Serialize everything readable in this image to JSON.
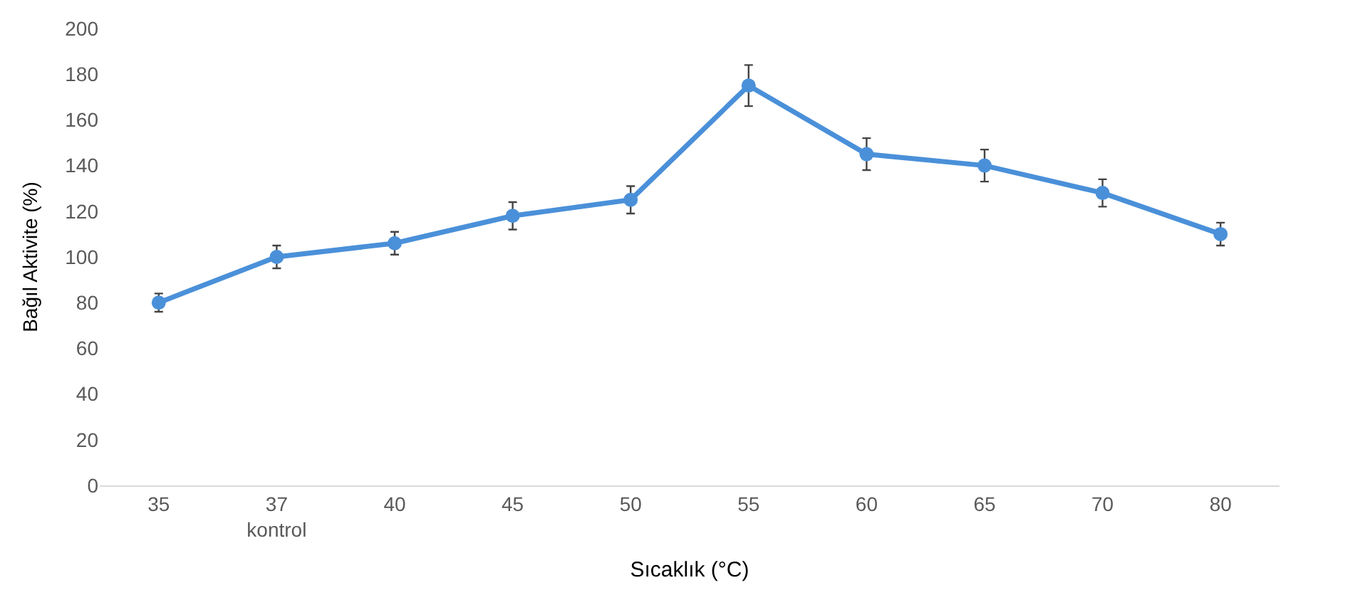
{
  "chart_data": {
    "type": "line",
    "xlabel": "Sıcaklık (°C)",
    "ylabel": "Bağıl Aktivite (%)",
    "categories": [
      "35",
      "37\nkontrol",
      "40",
      "45",
      "50",
      "55",
      "60",
      "65",
      "70",
      "80"
    ],
    "series": [
      {
        "color": "#4a90d9",
        "values": [
          80,
          100,
          106,
          118,
          125,
          175,
          145,
          140,
          128,
          110
        ],
        "errors": [
          4,
          5,
          5,
          6,
          6,
          9,
          7,
          7,
          6,
          5
        ]
      }
    ],
    "ylim": [
      0,
      200
    ],
    "yticks": [
      0,
      20,
      40,
      60,
      80,
      100,
      120,
      140,
      160,
      180,
      200
    ],
    "marker": "circle",
    "line_style": "solid"
  }
}
